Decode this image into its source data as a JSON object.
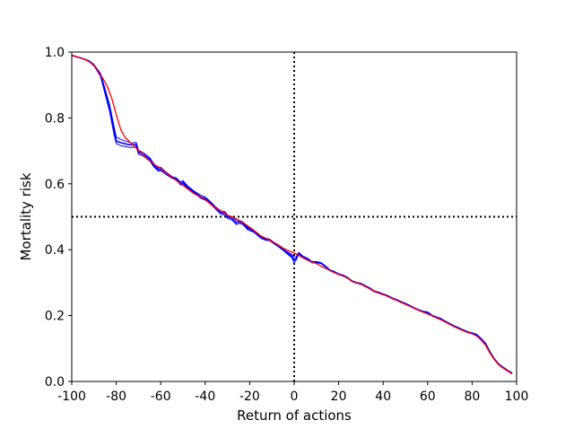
{
  "chart_data": {
    "type": "line",
    "title": "",
    "xlabel": "Return of actions",
    "ylabel": "Mortality risk",
    "xlim": [
      -100,
      100
    ],
    "ylim": [
      0.0,
      1.0
    ],
    "xticks": [
      -100,
      -80,
      -60,
      -40,
      -20,
      0,
      20,
      40,
      60,
      80,
      100
    ],
    "xtick_labels": [
      "-100",
      "-80",
      "-60",
      "-40",
      "-20",
      "0",
      "20",
      "40",
      "60",
      "80",
      "100"
    ],
    "yticks": [
      0.0,
      0.2,
      0.4,
      0.6,
      0.8,
      1.0
    ],
    "ytick_labels": [
      "0.0",
      "0.2",
      "0.4",
      "0.6",
      "0.8",
      "1.0"
    ],
    "grid": false,
    "legend": "none",
    "reference_lines": [
      {
        "orientation": "vertical",
        "value": 0,
        "style": "dotted",
        "color": "#000000"
      },
      {
        "orientation": "horizontal",
        "value": 0.5,
        "style": "dotted",
        "color": "#000000"
      }
    ],
    "series": [
      {
        "color": "#0000ff",
        "width": 1.6,
        "x": [
          -100,
          -95,
          -92,
          -90,
          -87,
          -85,
          -83,
          -81,
          -80,
          -78,
          -75,
          -73,
          -71,
          -70,
          -68,
          -65,
          -63,
          -61,
          -60,
          -58,
          -55,
          -53,
          -51,
          -50,
          -48,
          -45,
          -42,
          -40,
          -38,
          -35,
          -33,
          -31,
          -30,
          -28,
          -26,
          -25,
          -23,
          -21,
          -20,
          -18,
          -15,
          -13,
          -11,
          -10,
          -8,
          -5,
          -3,
          -1,
          0,
          1,
          2,
          4,
          6,
          8,
          10,
          12,
          14,
          16,
          18,
          20,
          22,
          24,
          26,
          28,
          30,
          32,
          34,
          36,
          38,
          40,
          42,
          44,
          46,
          48,
          50,
          52,
          54,
          56,
          58,
          60,
          62,
          64,
          66,
          68,
          70,
          72,
          74,
          76,
          78,
          80,
          82,
          84,
          86,
          88,
          90,
          92,
          94,
          96,
          98
        ],
        "y": [
          0.99,
          0.98,
          0.972,
          0.96,
          0.93,
          0.88,
          0.83,
          0.76,
          0.73,
          0.725,
          0.72,
          0.718,
          0.72,
          0.695,
          0.69,
          0.675,
          0.655,
          0.643,
          0.645,
          0.635,
          0.62,
          0.615,
          0.6,
          0.605,
          0.59,
          0.575,
          0.56,
          0.555,
          0.545,
          0.525,
          0.512,
          0.51,
          0.5,
          0.495,
          0.482,
          0.485,
          0.48,
          0.465,
          0.462,
          0.455,
          0.438,
          0.432,
          0.43,
          0.425,
          0.415,
          0.4,
          0.39,
          0.38,
          0.368,
          0.375,
          0.39,
          0.378,
          0.372,
          0.362,
          0.362,
          0.36,
          0.35,
          0.338,
          0.333,
          0.326,
          0.322,
          0.315,
          0.305,
          0.3,
          0.297,
          0.29,
          0.283,
          0.274,
          0.27,
          0.265,
          0.26,
          0.253,
          0.248,
          0.242,
          0.236,
          0.23,
          0.223,
          0.217,
          0.212,
          0.21,
          0.2,
          0.195,
          0.19,
          0.182,
          0.175,
          0.168,
          0.162,
          0.156,
          0.15,
          0.147,
          0.142,
          0.13,
          0.115,
          0.09,
          0.068,
          0.052,
          0.042,
          0.033,
          0.025
        ]
      },
      {
        "color": "#0000ff",
        "width": 1.0,
        "x": [
          -100,
          -95,
          -92,
          -90,
          -87,
          -85,
          -83,
          -81,
          -80,
          -78,
          -75,
          -73,
          -71,
          -70,
          -68,
          -65,
          -63,
          -61,
          -60,
          -58,
          -55,
          -53,
          -51,
          -50,
          -48,
          -45,
          -42,
          -40,
          -38,
          -35,
          -33,
          -31,
          -30,
          -28,
          -26,
          -25,
          -23,
          -21,
          -20,
          -18,
          -15,
          -13,
          -11,
          -10,
          -8,
          -5,
          -3,
          -1,
          0,
          1,
          2,
          4,
          6,
          8,
          10,
          12,
          14,
          16,
          18,
          20,
          22,
          24,
          26,
          28,
          30,
          32,
          34,
          36,
          38,
          40,
          42,
          44,
          46,
          48,
          50,
          52,
          54,
          56,
          58,
          60,
          62,
          64,
          66,
          68,
          70,
          72,
          74,
          76,
          78,
          80,
          82,
          84,
          86,
          88,
          90,
          92,
          94,
          96,
          98
        ],
        "y": [
          0.99,
          0.98,
          0.973,
          0.962,
          0.935,
          0.888,
          0.84,
          0.775,
          0.742,
          0.735,
          0.728,
          0.724,
          0.726,
          0.702,
          0.695,
          0.68,
          0.66,
          0.648,
          0.65,
          0.638,
          0.622,
          0.618,
          0.605,
          0.61,
          0.594,
          0.578,
          0.565,
          0.56,
          0.548,
          0.528,
          0.518,
          0.515,
          0.505,
          0.5,
          0.49,
          0.49,
          0.484,
          0.469,
          0.465,
          0.458,
          0.44,
          0.435,
          0.432,
          0.427,
          0.417,
          0.402,
          0.393,
          0.385,
          0.378,
          0.38,
          0.392,
          0.38,
          0.374,
          0.364,
          0.364,
          0.361,
          0.351,
          0.339,
          0.334,
          0.327,
          0.323,
          0.316,
          0.306,
          0.301,
          0.298,
          0.291,
          0.284,
          0.275,
          0.271,
          0.266,
          0.261,
          0.254,
          0.249,
          0.243,
          0.237,
          0.231,
          0.224,
          0.218,
          0.213,
          0.211,
          0.201,
          0.196,
          0.191,
          0.183,
          0.176,
          0.169,
          0.163,
          0.157,
          0.151,
          0.148,
          0.143,
          0.131,
          0.116,
          0.091,
          0.069,
          0.053,
          0.043,
          0.034,
          0.026
        ]
      },
      {
        "color": "#0000ff",
        "width": 1.0,
        "x": [
          -100,
          -95,
          -92,
          -90,
          -87,
          -85,
          -83,
          -81,
          -80,
          -78,
          -75,
          -73,
          -71,
          -70,
          -68,
          -65,
          -63,
          -61,
          -60,
          -58,
          -55,
          -53,
          -51,
          -50,
          -48,
          -45,
          -42,
          -40,
          -38,
          -35,
          -33,
          -31,
          -30,
          -28,
          -26,
          -25,
          -23,
          -21,
          -20,
          -18,
          -15,
          -13,
          -11,
          -10,
          -8,
          -5,
          -3,
          -1,
          0,
          1,
          2,
          4,
          6,
          8,
          10,
          12,
          14,
          16,
          18,
          20,
          22,
          24,
          26,
          28,
          30,
          32,
          34,
          36,
          38,
          40,
          42,
          44,
          46,
          48,
          50,
          52,
          54,
          56,
          58,
          60,
          62,
          64,
          66,
          68,
          70,
          72,
          74,
          76,
          78,
          80,
          82,
          84,
          86,
          88,
          90,
          92,
          94,
          96,
          98
        ],
        "y": [
          0.99,
          0.98,
          0.971,
          0.958,
          0.925,
          0.872,
          0.82,
          0.75,
          0.722,
          0.716,
          0.712,
          0.71,
          0.713,
          0.69,
          0.685,
          0.67,
          0.65,
          0.638,
          0.64,
          0.63,
          0.617,
          0.612,
          0.596,
          0.6,
          0.586,
          0.572,
          0.556,
          0.55,
          0.541,
          0.521,
          0.508,
          0.505,
          0.495,
          0.49,
          0.476,
          0.48,
          0.476,
          0.461,
          0.458,
          0.452,
          0.435,
          0.429,
          0.427,
          0.422,
          0.413,
          0.398,
          0.386,
          0.375,
          0.36,
          0.37,
          0.387,
          0.376,
          0.37,
          0.36,
          0.36,
          0.358,
          0.348,
          0.336,
          0.331,
          0.324,
          0.32,
          0.313,
          0.303,
          0.298,
          0.295,
          0.288,
          0.281,
          0.272,
          0.268,
          0.263,
          0.258,
          0.251,
          0.246,
          0.24,
          0.234,
          0.228,
          0.221,
          0.215,
          0.21,
          0.208,
          0.198,
          0.193,
          0.188,
          0.18,
          0.173,
          0.166,
          0.16,
          0.154,
          0.148,
          0.145,
          0.14,
          0.128,
          0.113,
          0.088,
          0.066,
          0.05,
          0.04,
          0.031,
          0.023
        ]
      },
      {
        "color": "#ff0000",
        "width": 1.3,
        "x": [
          -100,
          -95,
          -92,
          -90,
          -88,
          -86,
          -84,
          -82,
          -80,
          -78,
          -76,
          -74,
          -72,
          -70,
          -68,
          -66,
          -64,
          -62,
          -60,
          -58,
          -55,
          -52,
          -50,
          -48,
          -45,
          -42,
          -40,
          -38,
          -35,
          -32,
          -30,
          -28,
          -25,
          -22,
          -20,
          -18,
          -15,
          -12,
          -10,
          -8,
          -5,
          -3,
          -1,
          0,
          2,
          4,
          6,
          8,
          10,
          12,
          14,
          16,
          18,
          20,
          22,
          24,
          26,
          28,
          30,
          32,
          34,
          36,
          38,
          40,
          42,
          44,
          46,
          48,
          50,
          52,
          54,
          56,
          58,
          60,
          62,
          64,
          66,
          68,
          70,
          72,
          74,
          76,
          78,
          80,
          82,
          84,
          86,
          88,
          90,
          92,
          94,
          96,
          98
        ],
        "y": [
          0.99,
          0.98,
          0.97,
          0.958,
          0.94,
          0.92,
          0.895,
          0.86,
          0.81,
          0.765,
          0.74,
          0.728,
          0.715,
          0.7,
          0.69,
          0.675,
          0.665,
          0.655,
          0.648,
          0.635,
          0.62,
          0.605,
          0.595,
          0.585,
          0.57,
          0.56,
          0.552,
          0.54,
          0.525,
          0.515,
          0.505,
          0.5,
          0.49,
          0.478,
          0.468,
          0.458,
          0.442,
          0.432,
          0.425,
          0.418,
          0.405,
          0.398,
          0.392,
          0.39,
          0.383,
          0.375,
          0.368,
          0.362,
          0.358,
          0.35,
          0.344,
          0.337,
          0.33,
          0.325,
          0.32,
          0.313,
          0.305,
          0.3,
          0.295,
          0.288,
          0.281,
          0.274,
          0.268,
          0.264,
          0.258,
          0.252,
          0.246,
          0.24,
          0.234,
          0.228,
          0.222,
          0.216,
          0.21,
          0.205,
          0.199,
          0.193,
          0.187,
          0.18,
          0.173,
          0.166,
          0.16,
          0.154,
          0.149,
          0.145,
          0.138,
          0.126,
          0.11,
          0.086,
          0.066,
          0.05,
          0.04,
          0.031,
          0.023
        ]
      }
    ]
  }
}
